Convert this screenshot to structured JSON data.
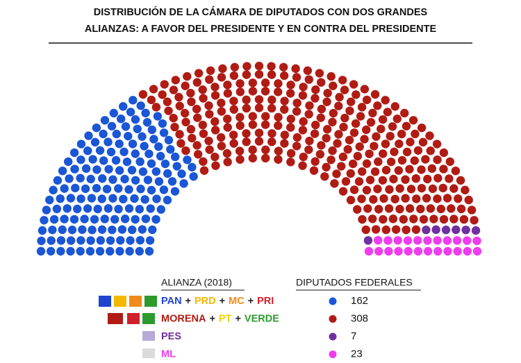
{
  "chart_data": {
    "type": "parliament",
    "title_lines": [
      "DISTRIBUCIÓN DE LA CÁMARA DE DIPUTADOS CON DOS GRANDES",
      "ALIANZAS: A FAVOR DEL PRESIDENTE Y EN CONTRA DEL PRESIDENTE"
    ],
    "legend_headers": [
      "ALIANZA (2018)",
      "DIPUTADOS FEDERALES"
    ],
    "series": [
      {
        "name_parts": [
          {
            "text": "PAN",
            "color": "#1f44d0"
          },
          {
            "text": "+",
            "color": "#222222"
          },
          {
            "text": "PRD",
            "color": "#f5b800"
          },
          {
            "text": "+",
            "color": "#222222"
          },
          {
            "text": "MC",
            "color": "#f08a1c"
          },
          {
            "text": "+",
            "color": "#222222"
          },
          {
            "text": "PRI",
            "color": "#d0202a"
          }
        ],
        "color": "#1a56d6",
        "value": 162
      },
      {
        "name_parts": [
          {
            "text": "MORENA",
            "color": "#b01c14"
          },
          {
            "text": "+",
            "color": "#222222"
          },
          {
            "text": "PT",
            "color": "#f5d000"
          },
          {
            "text": "+",
            "color": "#222222"
          },
          {
            "text": "VERDE",
            "color": "#2e9a2e"
          }
        ],
        "color": "#b01c14",
        "value": 308
      },
      {
        "name_parts": [
          {
            "text": "PES",
            "color": "#7030a0"
          }
        ],
        "color": "#7030a0",
        "value": 7
      },
      {
        "name_parts": [
          {
            "text": "ML",
            "color": "#f03cf0"
          }
        ],
        "color": "#f03cf0",
        "value": 23
      }
    ]
  }
}
